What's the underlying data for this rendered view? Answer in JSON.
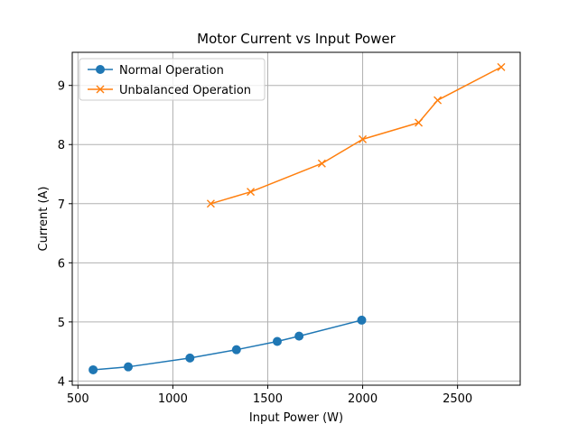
{
  "chart_data": {
    "type": "line",
    "title": "Motor Current vs Input Power",
    "xlabel": "Input Power (W)",
    "ylabel": "Current (A)",
    "xlim": [
      470,
      2830
    ],
    "ylim": [
      3.93,
      9.56
    ],
    "xticks": [
      500,
      1000,
      1500,
      2000,
      2500
    ],
    "yticks": [
      4,
      5,
      6,
      7,
      8,
      9
    ],
    "grid": true,
    "legend_position": "top-left",
    "series": [
      {
        "name": "Normal Operation",
        "color": "#1f77b4",
        "marker": "circle",
        "x": [
          580,
          765,
          1090,
          1335,
          1550,
          1665,
          1995
        ],
        "y": [
          4.19,
          4.24,
          4.39,
          4.53,
          4.67,
          4.76,
          5.03
        ]
      },
      {
        "name": "Unbalanced Operation",
        "color": "#ff7f0e",
        "marker": "x",
        "x": [
          1200,
          1410,
          1785,
          2000,
          2295,
          2395,
          2730
        ],
        "y": [
          7.0,
          7.2,
          7.68,
          8.09,
          8.37,
          8.75,
          9.31
        ]
      }
    ]
  }
}
